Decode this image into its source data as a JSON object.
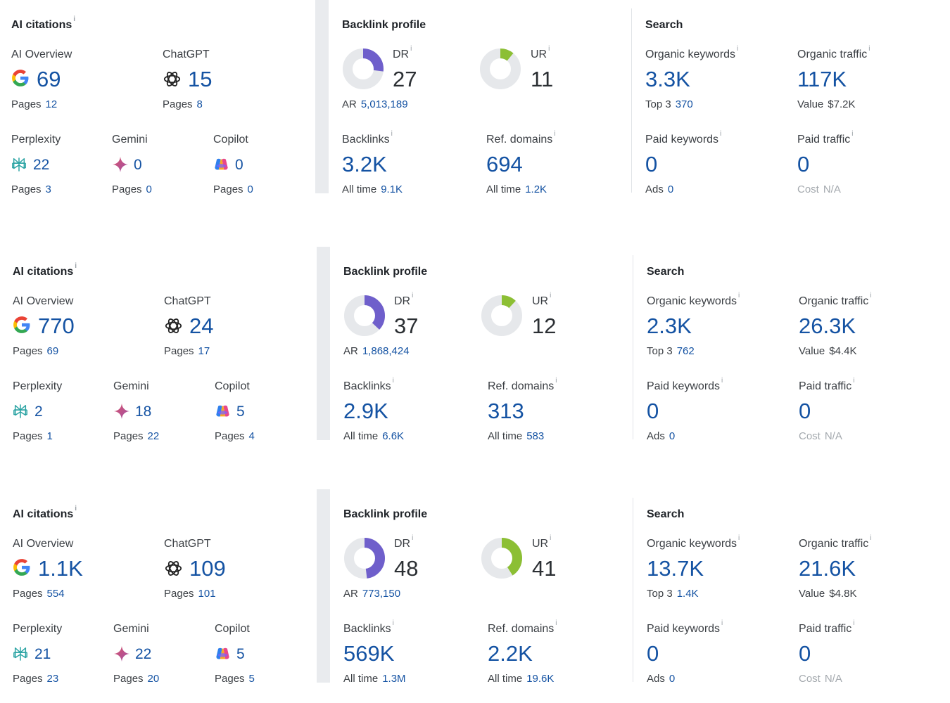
{
  "colors": {
    "accent_blue": "#1553a3",
    "dr_purple": "#6f5fcb",
    "ur_green": "#8cbf34",
    "donut_track": "#e6e8eb"
  },
  "rows": [
    {
      "ai": {
        "title": "AI citations",
        "ai_overview": {
          "label": "AI Overview",
          "value": "69",
          "pages_label": "Pages",
          "pages": "12"
        },
        "chatgpt": {
          "label": "ChatGPT",
          "value": "15",
          "pages_label": "Pages",
          "pages": "8"
        },
        "perplexity": {
          "label": "Perplexity",
          "value": "22",
          "pages_label": "Pages",
          "pages": "3"
        },
        "gemini": {
          "label": "Gemini",
          "value": "0",
          "pages_label": "Pages",
          "pages": "0"
        },
        "copilot": {
          "label": "Copilot",
          "value": "0",
          "pages_label": "Pages",
          "pages": "0"
        }
      },
      "backlink": {
        "title": "Backlink profile",
        "dr": {
          "label": "DR",
          "value": "27",
          "fraction": 0.27
        },
        "ar": {
          "label": "AR",
          "value": "5,013,189"
        },
        "ur": {
          "label": "UR",
          "value": "11",
          "fraction": 0.11
        },
        "backlinks": {
          "label": "Backlinks",
          "value": "3.2K",
          "sub_label": "All time",
          "sub": "9.1K"
        },
        "ref_domains": {
          "label": "Ref. domains",
          "value": "694",
          "sub_label": "All time",
          "sub": "1.2K"
        }
      },
      "search": {
        "title": "Search",
        "organic_keywords": {
          "label": "Organic keywords",
          "value": "3.3K",
          "sub_label": "Top 3",
          "sub": "370"
        },
        "organic_traffic": {
          "label": "Organic traffic",
          "value": "117K",
          "sub_label": "Value",
          "sub": "$7.2K"
        },
        "paid_keywords": {
          "label": "Paid keywords",
          "value": "0",
          "sub_label": "Ads",
          "sub": "0"
        },
        "paid_traffic": {
          "label": "Paid traffic",
          "value": "0",
          "sub_label": "Cost",
          "sub": "N/A"
        }
      }
    },
    {
      "ai": {
        "title": "AI citations",
        "ai_overview": {
          "label": "AI Overview",
          "value": "770",
          "pages_label": "Pages",
          "pages": "69"
        },
        "chatgpt": {
          "label": "ChatGPT",
          "value": "24",
          "pages_label": "Pages",
          "pages": "17"
        },
        "perplexity": {
          "label": "Perplexity",
          "value": "2",
          "pages_label": "Pages",
          "pages": "1"
        },
        "gemini": {
          "label": "Gemini",
          "value": "18",
          "pages_label": "Pages",
          "pages": "22"
        },
        "copilot": {
          "label": "Copilot",
          "value": "5",
          "pages_label": "Pages",
          "pages": "4"
        }
      },
      "backlink": {
        "title": "Backlink profile",
        "dr": {
          "label": "DR",
          "value": "37",
          "fraction": 0.37
        },
        "ar": {
          "label": "AR",
          "value": "1,868,424"
        },
        "ur": {
          "label": "UR",
          "value": "12",
          "fraction": 0.12
        },
        "backlinks": {
          "label": "Backlinks",
          "value": "2.9K",
          "sub_label": "All time",
          "sub": "6.6K"
        },
        "ref_domains": {
          "label": "Ref. domains",
          "value": "313",
          "sub_label": "All time",
          "sub": "583"
        }
      },
      "search": {
        "title": "Search",
        "organic_keywords": {
          "label": "Organic keywords",
          "value": "2.3K",
          "sub_label": "Top 3",
          "sub": "762"
        },
        "organic_traffic": {
          "label": "Organic traffic",
          "value": "26.3K",
          "sub_label": "Value",
          "sub": "$4.4K"
        },
        "paid_keywords": {
          "label": "Paid keywords",
          "value": "0",
          "sub_label": "Ads",
          "sub": "0"
        },
        "paid_traffic": {
          "label": "Paid traffic",
          "value": "0",
          "sub_label": "Cost",
          "sub": "N/A"
        }
      }
    },
    {
      "ai": {
        "title": "AI citations",
        "ai_overview": {
          "label": "AI Overview",
          "value": "1.1K",
          "pages_label": "Pages",
          "pages": "554"
        },
        "chatgpt": {
          "label": "ChatGPT",
          "value": "109",
          "pages_label": "Pages",
          "pages": "101"
        },
        "perplexity": {
          "label": "Perplexity",
          "value": "21",
          "pages_label": "Pages",
          "pages": "23"
        },
        "gemini": {
          "label": "Gemini",
          "value": "22",
          "pages_label": "Pages",
          "pages": "20"
        },
        "copilot": {
          "label": "Copilot",
          "value": "5",
          "pages_label": "Pages",
          "pages": "5"
        }
      },
      "backlink": {
        "title": "Backlink profile",
        "dr": {
          "label": "DR",
          "value": "48",
          "fraction": 0.48
        },
        "ar": {
          "label": "AR",
          "value": "773,150"
        },
        "ur": {
          "label": "UR",
          "value": "41",
          "fraction": 0.41
        },
        "backlinks": {
          "label": "Backlinks",
          "value": "569K",
          "sub_label": "All time",
          "sub": "1.3M"
        },
        "ref_domains": {
          "label": "Ref. domains",
          "value": "2.2K",
          "sub_label": "All time",
          "sub": "19.6K"
        }
      },
      "search": {
        "title": "Search",
        "organic_keywords": {
          "label": "Organic keywords",
          "value": "13.7K",
          "sub_label": "Top 3",
          "sub": "1.4K"
        },
        "organic_traffic": {
          "label": "Organic traffic",
          "value": "21.6K",
          "sub_label": "Value",
          "sub": "$4.8K"
        },
        "paid_keywords": {
          "label": "Paid keywords",
          "value": "0",
          "sub_label": "Ads",
          "sub": "0"
        },
        "paid_traffic": {
          "label": "Paid traffic",
          "value": "0",
          "sub_label": "Cost",
          "sub": "N/A"
        }
      }
    }
  ]
}
